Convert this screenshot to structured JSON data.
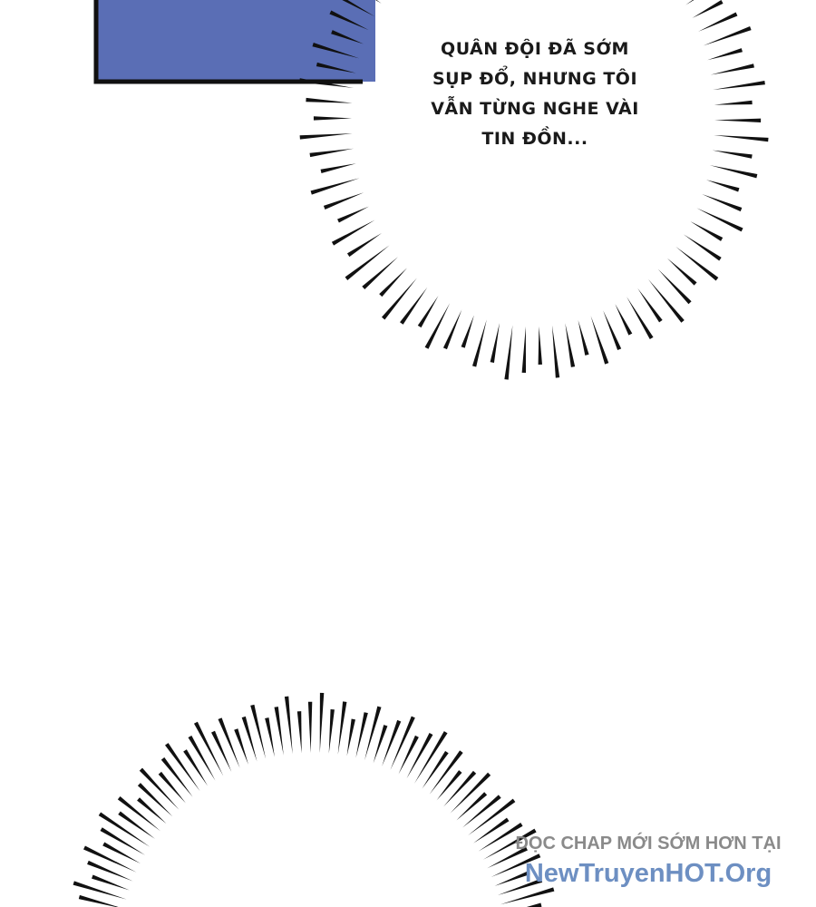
{
  "speech_bubble": {
    "lines": [
      "QUÂN ĐỘI ĐÃ SỚM",
      "SỤP ĐỔ, NHƯNG TÔI",
      "VẪN TỪNG NGHE VÀI",
      "TIN ĐỒN..."
    ]
  },
  "watermark": {
    "line1": "ĐỌC CHAP MỚI SỚM HƠN TẠI",
    "line2": "NewTruyenHOT.Org"
  },
  "colors": {
    "panel_blue": "#5a6eb5",
    "ink": "#111111",
    "watermark_gray": "#8a8a8a",
    "watermark_blue": "#6d8fc2"
  }
}
